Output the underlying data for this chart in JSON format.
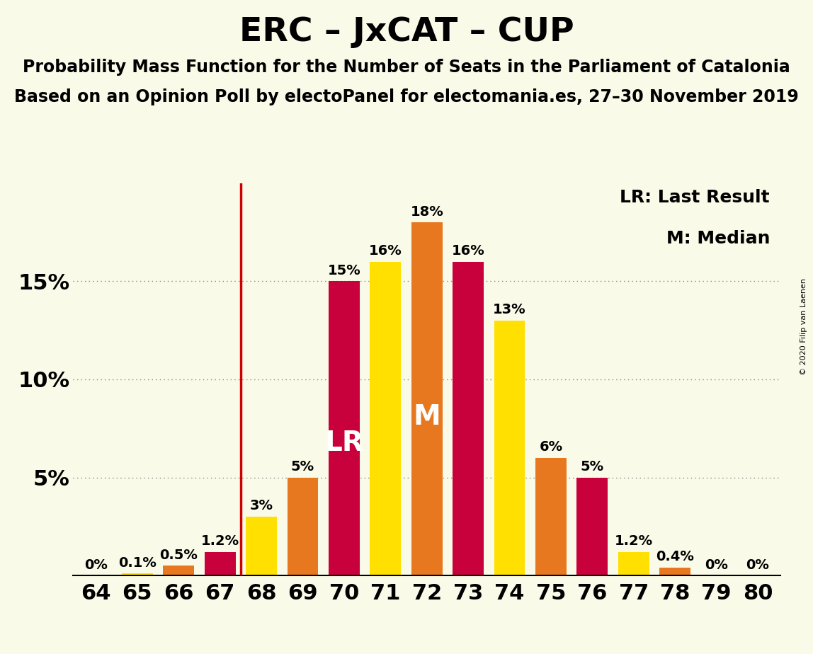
{
  "title": "ERC – JxCAT – CUP",
  "subtitle1": "Probability Mass Function for the Number of Seats in the Parliament of Catalonia",
  "subtitle2": "Based on an Opinion Poll by electoPanel for electomania.es, 27–30 November 2019",
  "copyright": "© 2020 Filip van Laenen",
  "seats": [
    64,
    65,
    66,
    67,
    68,
    69,
    70,
    71,
    72,
    73,
    74,
    75,
    76,
    77,
    78,
    79,
    80
  ],
  "probabilities": [
    0.0,
    0.1,
    0.5,
    1.2,
    3.0,
    5.0,
    15.0,
    16.0,
    18.0,
    16.0,
    13.0,
    6.0,
    5.0,
    1.2,
    0.4,
    0.0,
    0.0
  ],
  "last_result_seat": 70,
  "median_seat": 72,
  "bar_color_crimson": "#C8003C",
  "bar_color_yellow": "#FFE000",
  "bar_color_orange": "#E87820",
  "background_color": "#FAFAE8",
  "lr_line_color": "#CC0000",
  "title_fontsize": 34,
  "subtitle_fontsize": 17,
  "axis_label_fontsize": 22,
  "bar_label_fontsize": 14,
  "legend_fontsize": 18,
  "bar_colors": [
    "#FFE000",
    "#FFE000",
    "#E87820",
    "#C8003C",
    "#FFE000",
    "#E87820",
    "#C8003C",
    "#FFE000",
    "#E87820",
    "#C8003C",
    "#FFE000",
    "#E87820",
    "#C8003C",
    "#FFE000",
    "#E87820",
    "#FFE000",
    "#FFE000"
  ]
}
